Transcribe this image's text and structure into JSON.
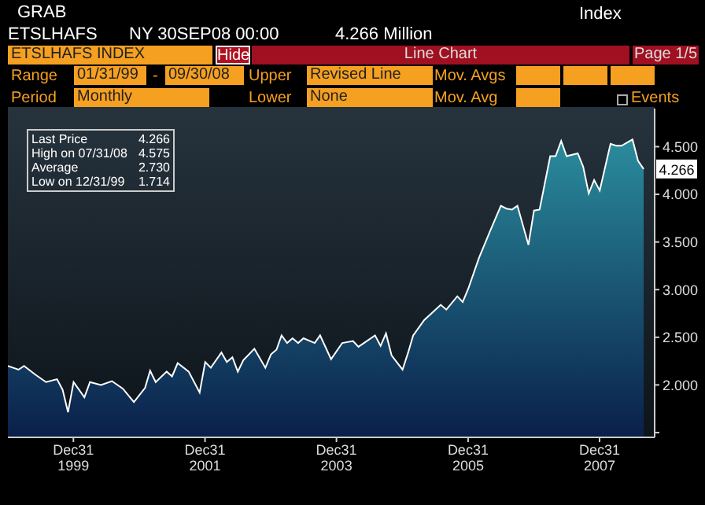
{
  "chart_data": {
    "type": "area",
    "title": "ETSLHAFS INDEX",
    "annotations": [
      "GRAB",
      "ETSLHAFS",
      "NY 30SEP08 00:00",
      "4.266 Million",
      "Index",
      "Hide",
      "Line Chart",
      "Page 1/5",
      "Range",
      "01/31/99",
      "-",
      "09/30/08",
      "Upper",
      "Revised Line",
      "Mov. Avgs",
      "Period",
      "Monthly",
      "Lower",
      "None",
      "Mov. Avg",
      "Events",
      "Last Price",
      "4.266",
      "High on 07/31/08",
      "4.575",
      "Average",
      "2.730",
      "Low on 12/31/99",
      "1.714",
      {
        "text": "4.266",
        "x": "2008-09",
        "y": 4.266
      }
    ],
    "x": [
      "1999-01",
      "1999-03",
      "1999-04",
      "1999-06",
      "1999-08",
      "1999-10",
      "1999-11",
      "1999-12",
      "2000-01",
      "2000-03",
      "2000-04",
      "2000-06",
      "2000-08",
      "2000-10",
      "2000-12",
      "2001-02",
      "2001-03",
      "2001-04",
      "2001-06",
      "2001-07",
      "2001-08",
      "2001-10",
      "2001-12",
      "2002-01",
      "2002-02",
      "2002-04",
      "2002-05",
      "2002-06",
      "2002-07",
      "2002-08",
      "2002-10",
      "2002-12",
      "2003-01",
      "2003-02",
      "2003-03",
      "2003-04",
      "2003-05",
      "2003-06",
      "2003-07",
      "2003-09",
      "2003-10",
      "2003-12",
      "2004-02",
      "2004-04",
      "2004-05",
      "2004-08",
      "2004-09",
      "2004-10",
      "2004-11",
      "2005-01",
      "2005-02",
      "2005-03",
      "2005-05",
      "2005-08",
      "2005-09",
      "2005-11",
      "2005-12",
      "2006-01",
      "2006-03",
      "2006-05",
      "2006-07",
      "2006-08",
      "2006-09",
      "2006-10",
      "2006-12",
      "2007-01",
      "2007-02",
      "2007-04",
      "2007-05",
      "2007-06",
      "2007-07",
      "2007-09",
      "2007-10",
      "2007-11",
      "2007-12",
      "2008-01",
      "2008-03",
      "2008-04",
      "2008-05",
      "2008-07",
      "2008-08",
      "2008-09"
    ],
    "series": [
      {
        "color": "#2a8c9c",
        "values": [
          2.2,
          2.16,
          2.2,
          2.11,
          2.03,
          2.06,
          1.95,
          1.714,
          2.03,
          1.87,
          2.03,
          2.0,
          2.04,
          1.96,
          1.82,
          1.97,
          2.15,
          2.03,
          2.14,
          2.09,
          2.23,
          2.14,
          1.92,
          2.24,
          2.18,
          2.34,
          2.24,
          2.29,
          2.14,
          2.26,
          2.38,
          2.18,
          2.32,
          2.37,
          2.52,
          2.44,
          2.49,
          2.44,
          2.49,
          2.44,
          2.52,
          2.27,
          2.44,
          2.46,
          2.4,
          2.52,
          2.41,
          2.54,
          2.31,
          2.16,
          2.34,
          2.52,
          2.68,
          2.84,
          2.79,
          2.93,
          2.87,
          3.01,
          3.33,
          3.61,
          3.88,
          3.85,
          3.84,
          3.88,
          3.47,
          3.83,
          3.84,
          4.4,
          4.4,
          4.56,
          4.4,
          4.43,
          4.29,
          4.01,
          4.15,
          4.04,
          4.53,
          4.51,
          4.51,
          4.575,
          4.35,
          4.266
        ]
      }
    ],
    "xlim": [
      "1999-01",
      "2008-11"
    ],
    "xticks": [
      {
        "value": "1999-12-31",
        "label": "Dec31 1999"
      },
      {
        "value": "2001-12-31",
        "label": "Dec31 2001"
      },
      {
        "value": "2003-12-31",
        "label": "Dec31 2003"
      },
      {
        "value": "2005-12-31",
        "label": "Dec31 2005"
      },
      {
        "value": "2007-12-31",
        "label": "Dec31 2007"
      }
    ],
    "ylim": [
      1.45,
      4.9
    ],
    "yticks": [
      {
        "value": 1.5,
        "label": null
      },
      {
        "value": 2,
        "label": "2.000"
      },
      {
        "value": 2.5,
        "label": "2.500"
      },
      {
        "value": 3,
        "label": "3.000"
      },
      {
        "value": 3.5,
        "label": "3.500"
      },
      {
        "value": 4,
        "label": "4.000"
      },
      {
        "value": 4.5,
        "label": "4.500"
      }
    ]
  }
}
